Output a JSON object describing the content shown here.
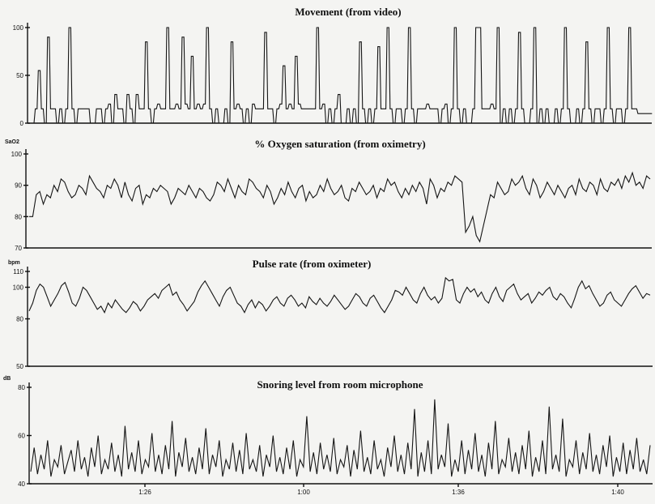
{
  "chart_data": [
    {
      "type": "line",
      "title": "Movement (from video)",
      "ylabel": "",
      "ylim": [
        0,
        100
      ],
      "yticks": [
        "100",
        "50",
        "0"
      ],
      "y_tick_values": [
        100,
        50,
        0
      ],
      "grid": false,
      "series": [
        {
          "values": [
            0,
            0,
            15,
            55,
            15,
            0,
            90,
            15,
            15,
            0,
            15,
            0,
            15,
            100,
            15,
            0,
            15,
            15,
            15,
            15,
            0,
            0,
            15,
            15,
            0,
            15,
            20,
            0,
            30,
            15,
            15,
            0,
            30,
            15,
            0,
            30,
            15,
            15,
            85,
            15,
            0,
            15,
            20,
            15,
            15,
            100,
            15,
            15,
            20,
            15,
            90,
            20,
            15,
            70,
            15,
            20,
            15,
            20,
            100,
            15,
            0,
            15,
            0,
            0,
            15,
            0,
            85,
            15,
            20,
            15,
            0,
            15,
            0,
            20,
            15,
            15,
            15,
            95,
            15,
            15,
            0,
            15,
            20,
            60,
            15,
            20,
            15,
            70,
            20,
            15,
            15,
            15,
            15,
            15,
            100,
            15,
            20,
            0,
            15,
            0,
            15,
            30,
            0,
            0,
            15,
            0,
            15,
            0,
            85,
            15,
            0,
            15,
            0,
            15,
            80,
            15,
            15,
            100,
            15,
            0,
            15,
            15,
            0,
            15,
            100,
            15,
            0,
            15,
            15,
            15,
            20,
            15,
            15,
            15,
            0,
            15,
            20,
            0,
            15,
            100,
            15,
            0,
            15,
            0,
            0,
            15,
            100,
            100,
            15,
            15,
            15,
            20,
            15,
            100,
            0,
            15,
            0,
            15,
            0,
            15,
            95,
            15,
            0,
            0,
            15,
            100,
            0,
            15,
            0,
            15,
            0,
            0,
            15,
            0,
            15,
            100,
            15,
            0,
            0,
            15,
            0,
            15,
            85,
            15,
            0,
            15,
            15,
            0,
            15,
            100,
            15,
            0,
            15,
            15,
            0,
            15,
            100,
            15,
            15,
            10,
            10,
            10,
            10,
            10
          ]
        }
      ]
    },
    {
      "type": "line",
      "title": "% Oxygen saturation (from oximetry)",
      "ylabel": "SaO2",
      "ylim": [
        70,
        100
      ],
      "yticks": [
        "100",
        "90",
        "80",
        "70"
      ],
      "y_tick_values": [
        100,
        90,
        80,
        70
      ],
      "grid": false,
      "series": [
        {
          "values": [
            80,
            80,
            87,
            88,
            84,
            87,
            86,
            90,
            88,
            92,
            91,
            88,
            86,
            87,
            90,
            89,
            87,
            93,
            91,
            89,
            88,
            86,
            90,
            89,
            92,
            90,
            86,
            91,
            87,
            85,
            89,
            90,
            84,
            87,
            86,
            89,
            88,
            90,
            89,
            88,
            84,
            86,
            89,
            88,
            87,
            90,
            88,
            86,
            89,
            88,
            86,
            85,
            87,
            91,
            90,
            88,
            92,
            89,
            86,
            90,
            88,
            87,
            92,
            91,
            89,
            88,
            86,
            90,
            88,
            84,
            86,
            89,
            87,
            91,
            88,
            86,
            89,
            90,
            85,
            88,
            86,
            87,
            90,
            88,
            92,
            89,
            87,
            88,
            90,
            86,
            85,
            89,
            88,
            91,
            89,
            87,
            88,
            90,
            86,
            89,
            88,
            92,
            90,
            91,
            88,
            86,
            89,
            87,
            90,
            88,
            91,
            89,
            84,
            92,
            90,
            86,
            89,
            88,
            91,
            90,
            93,
            92,
            91,
            75,
            77,
            80,
            74,
            72,
            77,
            82,
            87,
            86,
            91,
            89,
            87,
            88,
            92,
            90,
            91,
            93,
            89,
            87,
            92,
            90,
            86,
            88,
            91,
            89,
            87,
            90,
            88,
            86,
            89,
            90,
            87,
            92,
            89,
            88,
            91,
            90,
            87,
            92,
            89,
            88,
            91,
            90,
            92,
            89,
            93,
            91,
            94,
            90,
            91,
            89,
            93,
            92
          ]
        }
      ]
    },
    {
      "type": "line",
      "title": "Pulse rate (from oximeter)",
      "ylabel": "bpm",
      "ylim": [
        50,
        110
      ],
      "yticks": [
        "110",
        "100",
        "80",
        "50"
      ],
      "y_tick_values": [
        110,
        100,
        80,
        50
      ],
      "grid": false,
      "series": [
        {
          "values": [
            85,
            90,
            98,
            102,
            100,
            94,
            88,
            92,
            96,
            101,
            103,
            97,
            90,
            88,
            93,
            100,
            98,
            94,
            90,
            86,
            88,
            84,
            90,
            87,
            92,
            89,
            86,
            84,
            87,
            91,
            89,
            85,
            88,
            92,
            94,
            96,
            93,
            98,
            100,
            102,
            95,
            97,
            92,
            89,
            85,
            88,
            91,
            97,
            101,
            104,
            100,
            96,
            92,
            88,
            94,
            98,
            100,
            95,
            90,
            88,
            84,
            89,
            92,
            87,
            91,
            89,
            85,
            88,
            92,
            94,
            90,
            88,
            93,
            95,
            92,
            88,
            90,
            87,
            94,
            91,
            89,
            93,
            90,
            88,
            91,
            95,
            92,
            89,
            86,
            88,
            92,
            96,
            94,
            90,
            88,
            93,
            95,
            91,
            87,
            84,
            88,
            92,
            98,
            97,
            95,
            100,
            96,
            92,
            90,
            96,
            100,
            95,
            92,
            94,
            90,
            93,
            106,
            104,
            105,
            92,
            90,
            96,
            100,
            97,
            99,
            94,
            97,
            92,
            90,
            96,
            100,
            94,
            91,
            98,
            100,
            102,
            96,
            92,
            94,
            96,
            90,
            93,
            97,
            95,
            98,
            100,
            94,
            92,
            96,
            94,
            90,
            87,
            93,
            100,
            104,
            99,
            101,
            96,
            92,
            88,
            90,
            95,
            97,
            92,
            90,
            88,
            92,
            96,
            99,
            101,
            97,
            93,
            96,
            95
          ]
        }
      ]
    },
    {
      "type": "line",
      "title": "Snoring level from room microphone",
      "ylabel": "dB",
      "ylim": [
        40,
        80
      ],
      "yticks": [
        "80",
        "60",
        "40"
      ],
      "y_tick_values": [
        80,
        60,
        40
      ],
      "xticks": [
        "1:26",
        "1:00",
        "1:36",
        "1:40"
      ],
      "grid": false,
      "series": [
        {
          "values": [
            45,
            55,
            44,
            52,
            46,
            58,
            43,
            50,
            47,
            56,
            44,
            49,
            54,
            45,
            58,
            46,
            51,
            43,
            55,
            47,
            60,
            44,
            50,
            46,
            57,
            45,
            52,
            43,
            64,
            46,
            53,
            45,
            58,
            44,
            50,
            47,
            61,
            45,
            52,
            44,
            56,
            46,
            66,
            43,
            53,
            47,
            59,
            45,
            51,
            44,
            55,
            46,
            63,
            44,
            52,
            47,
            58,
            43,
            50,
            46,
            57,
            45,
            54,
            44,
            61,
            46,
            50,
            45,
            56,
            43,
            52,
            47,
            60,
            45,
            51,
            44,
            55,
            46,
            58,
            43,
            50,
            47,
            68,
            45,
            53,
            44,
            57,
            46,
            52,
            45,
            59,
            44,
            50,
            47,
            56,
            43,
            54,
            46,
            62,
            45,
            51,
            44,
            58,
            46,
            50,
            43,
            55,
            47,
            60,
            45,
            52,
            44,
            57,
            46,
            71,
            43,
            53,
            45,
            58,
            44,
            75,
            46,
            52,
            47,
            65,
            43,
            50,
            45,
            58,
            44,
            54,
            46,
            61,
            45,
            52,
            43,
            57,
            46,
            66,
            44,
            50,
            47,
            59,
            45,
            53,
            44,
            56,
            46,
            62,
            43,
            51,
            45,
            58,
            44,
            72,
            46,
            52,
            45,
            67,
            43,
            50,
            47,
            58,
            44,
            53,
            46,
            61,
            45,
            52,
            44,
            56,
            47,
            60,
            43,
            51,
            45,
            57,
            44,
            54,
            46,
            59,
            45,
            50,
            44,
            56
          ]
        }
      ]
    }
  ]
}
